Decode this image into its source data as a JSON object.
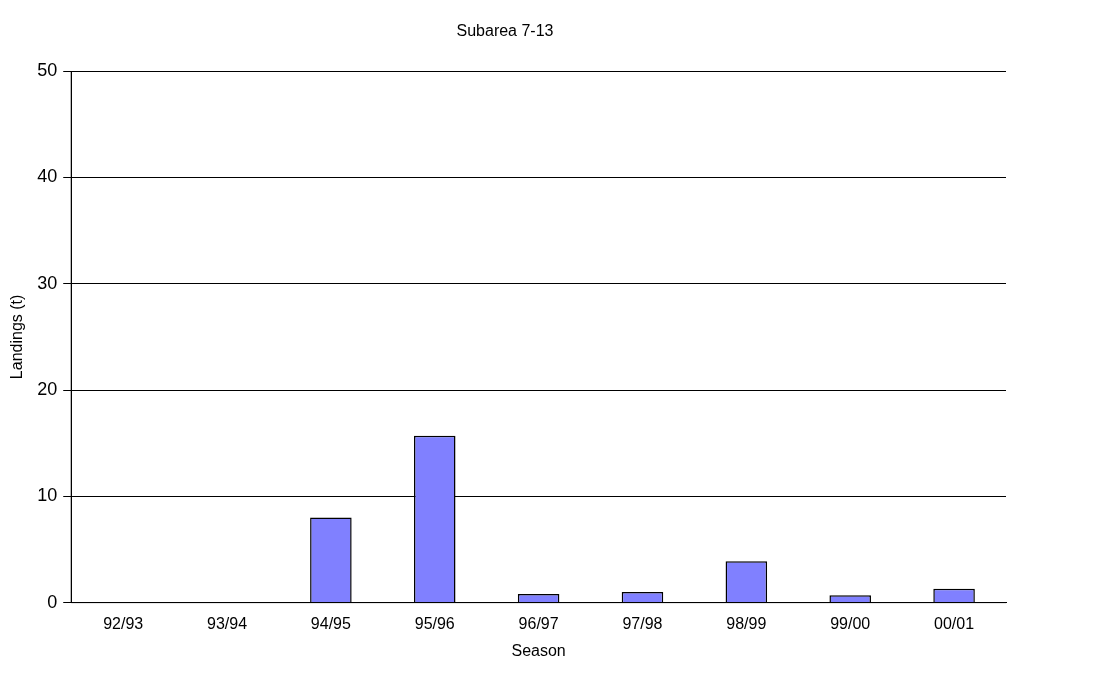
{
  "chart_data": {
    "type": "bar",
    "title": "Subarea 7-13",
    "xlabel": "Season",
    "ylabel": "Landings (t)",
    "categories": [
      "92/93",
      "93/94",
      "94/95",
      "95/96",
      "96/97",
      "97/98",
      "98/99",
      "99/00",
      "00/01"
    ],
    "values": [
      null,
      null,
      8.0,
      15.7,
      0.8,
      1.0,
      3.9,
      0.7,
      1.3
    ],
    "color": "#8080ff",
    "ylim": [
      0,
      50
    ],
    "yticks": [
      0,
      10,
      20,
      30,
      40,
      50
    ],
    "grid": "y",
    "legend": false
  }
}
